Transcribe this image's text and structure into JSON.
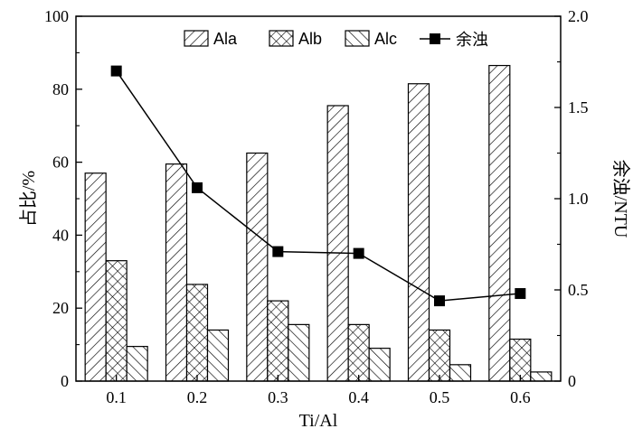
{
  "chart_data": {
    "type": "bar",
    "xlabel": "Ti/Al",
    "ylabel": "占比/%",
    "y2label": "余浊/NTU",
    "categories": [
      "0.1",
      "0.2",
      "0.3",
      "0.4",
      "0.5",
      "0.6"
    ],
    "ylim": [
      0,
      100
    ],
    "y2lim": [
      0,
      2.0
    ],
    "yticks": [
      "0",
      "20",
      "40",
      "60",
      "80",
      "100"
    ],
    "y2ticks": [
      "0",
      "0.5",
      "1.0",
      "1.5",
      "2.0"
    ],
    "series": [
      {
        "name": "Ala",
        "type": "bar",
        "pattern": "forward-diagonal",
        "values": [
          57,
          59.5,
          62.5,
          75.5,
          81.5,
          86.5
        ]
      },
      {
        "name": "Alb",
        "type": "bar",
        "pattern": "crosshatch",
        "values": [
          33,
          26.5,
          22,
          15.5,
          14,
          11.5
        ]
      },
      {
        "name": "Alc",
        "type": "bar",
        "pattern": "back-diagonal",
        "values": [
          9.5,
          14,
          15.5,
          9,
          4.5,
          2.5
        ]
      },
      {
        "name": "余浊",
        "type": "line",
        "marker": "square",
        "axis": "right",
        "values": [
          1.7,
          1.06,
          0.71,
          0.7,
          0.44,
          0.48
        ]
      }
    ],
    "legend_position": "top-right",
    "colors": {
      "stroke": "#000000",
      "background": "#ffffff"
    }
  }
}
